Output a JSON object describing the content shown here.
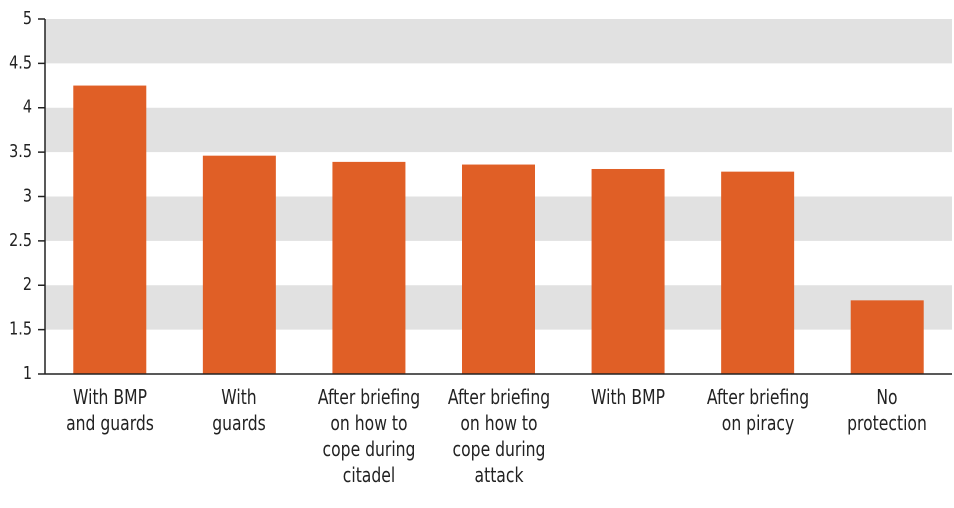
{
  "chart_data": {
    "type": "bar",
    "categories": [
      "With BMP\nand guards",
      "With\nguards",
      "After briefing\non how to\ncope during\ncitadel",
      "After briefing\non how to\ncope during\nattack",
      "With BMP",
      "After briefing\non piracy",
      "No\nprotection"
    ],
    "values": [
      4.25,
      3.46,
      3.39,
      3.36,
      3.31,
      3.28,
      1.83
    ],
    "color": "#e05f26",
    "ylim": [
      1,
      5
    ],
    "yticks": [
      1,
      1.5,
      2,
      2.5,
      3,
      3.5,
      4,
      4.5,
      5
    ],
    "grid": "bands",
    "band_color": "#e1e1e1"
  }
}
